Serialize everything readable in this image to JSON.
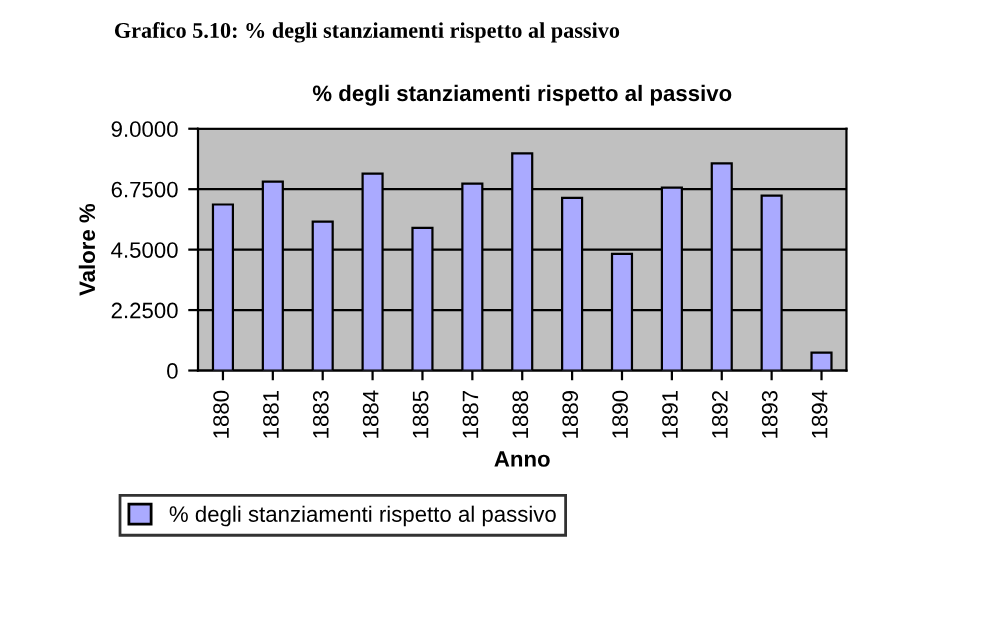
{
  "chart_data": {
    "type": "bar",
    "title": "% degli stanziamenti rispetto al passivo",
    "annotations": [
      "Grafico 5.10: % degli stanziamenti rispetto al passivo"
    ],
    "xlabel": "Anno",
    "ylabel": "Valore %",
    "categories": [
      "1880",
      "1881",
      "1883",
      "1884",
      "1885",
      "1887",
      "1888",
      "1889",
      "1890",
      "1891",
      "1892",
      "1893",
      "1894"
    ],
    "series": [
      {
        "name": "% degli stanziamenti rispetto al passivo",
        "color": "#aaaaff",
        "values": [
          6.18,
          7.03,
          5.54,
          7.33,
          5.31,
          6.96,
          8.08,
          6.43,
          4.34,
          6.81,
          7.71,
          6.51,
          0.67
        ]
      }
    ],
    "ylim": [
      0,
      9
    ],
    "yticks": [
      {
        "value": 0,
        "label": "0"
      },
      {
        "value": 2.25,
        "label": "2.2500"
      },
      {
        "value": 4.5,
        "label": "4.5000"
      },
      {
        "value": 6.75,
        "label": "6.7500"
      },
      {
        "value": 9,
        "label": "9.0000"
      }
    ],
    "grid": "y",
    "legend": "bottom left"
  }
}
